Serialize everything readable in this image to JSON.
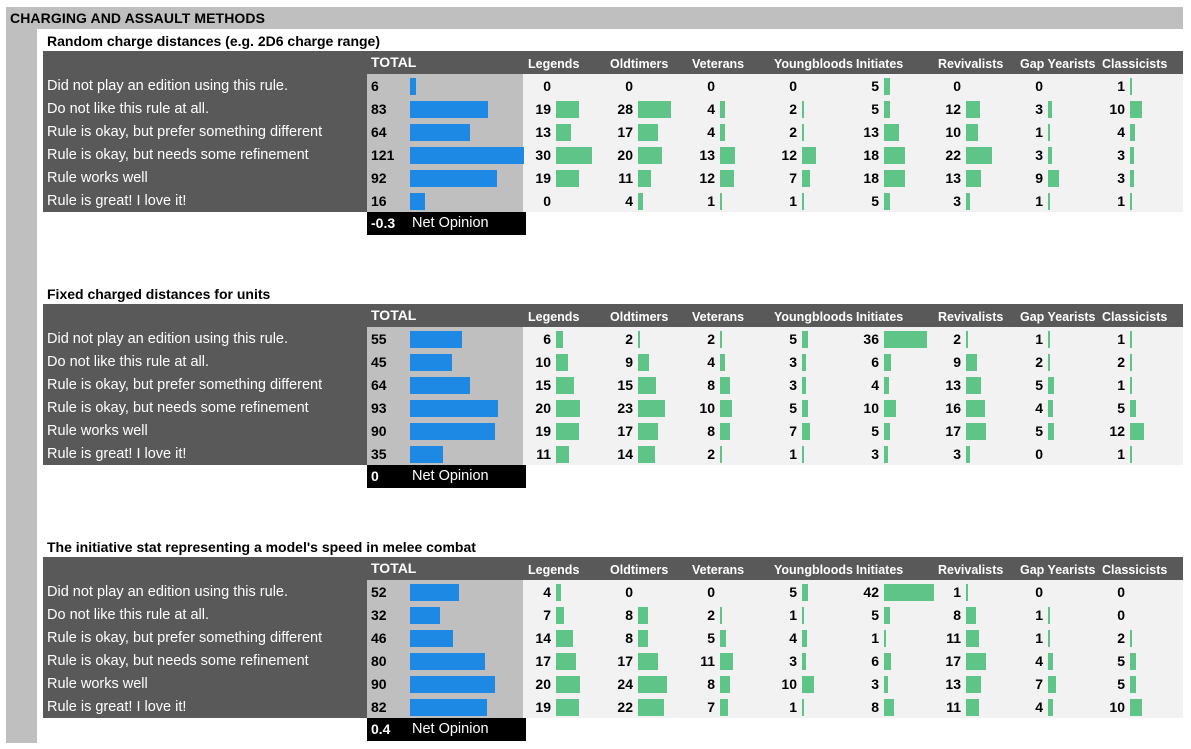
{
  "header": {
    "title": "CHARGING AND ASSAULT METHODS"
  },
  "columns": {
    "total": "TOTAL",
    "groups": [
      "Legends",
      "Oldtimers",
      "Veterans",
      "Youngbloods",
      "Initiates",
      "Revivalists",
      "Gap Yearists",
      "Classicists"
    ]
  },
  "row_labels": [
    "Did not play an edition using this rule.",
    "Do not like this rule at all.",
    "Rule is okay, but prefer something different",
    "Rule is okay, but needs some refinement",
    "Rule works well",
    "Rule is great! I love it!"
  ],
  "net_opinion_label": "Net Opinion",
  "colors": {
    "total_bar": "#1e88e5",
    "group_bar": "#5ec487",
    "dark_header": "#595959",
    "gray": "#bfbfbf"
  },
  "chart_data": [
    {
      "type": "table",
      "title": "Random charge distances (e.g. 2D6 charge range)",
      "totals": [
        6,
        83,
        64,
        121,
        92,
        16
      ],
      "groups": [
        [
          0,
          19,
          13,
          30,
          19,
          0
        ],
        [
          0,
          28,
          17,
          20,
          11,
          4
        ],
        [
          0,
          4,
          4,
          13,
          12,
          1
        ],
        [
          0,
          2,
          2,
          12,
          7,
          1
        ],
        [
          5,
          5,
          13,
          18,
          18,
          5
        ],
        [
          0,
          12,
          10,
          22,
          13,
          3
        ],
        [
          0,
          3,
          1,
          3,
          9,
          1
        ],
        [
          1,
          10,
          4,
          3,
          3,
          1
        ]
      ],
      "net_opinion": "-0.3"
    },
    {
      "type": "table",
      "title": "Fixed charged distances for units",
      "totals": [
        55,
        45,
        64,
        93,
        90,
        35
      ],
      "groups": [
        [
          6,
          10,
          15,
          20,
          19,
          11
        ],
        [
          2,
          9,
          15,
          23,
          17,
          14
        ],
        [
          2,
          4,
          8,
          10,
          8,
          2
        ],
        [
          5,
          3,
          3,
          5,
          7,
          1
        ],
        [
          36,
          6,
          4,
          10,
          5,
          3
        ],
        [
          2,
          9,
          13,
          16,
          17,
          3
        ],
        [
          1,
          2,
          5,
          4,
          5,
          0
        ],
        [
          1,
          2,
          1,
          5,
          12,
          1
        ]
      ],
      "net_opinion": "0"
    },
    {
      "type": "table",
      "title": "The initiative stat representing a model's speed in melee combat",
      "totals": [
        52,
        32,
        46,
        80,
        90,
        82
      ],
      "groups": [
        [
          4,
          7,
          14,
          17,
          20,
          19
        ],
        [
          0,
          8,
          8,
          17,
          24,
          22
        ],
        [
          0,
          2,
          5,
          11,
          8,
          7
        ],
        [
          5,
          1,
          4,
          3,
          10,
          1
        ],
        [
          42,
          5,
          1,
          6,
          3,
          8
        ],
        [
          1,
          8,
          11,
          17,
          13,
          11
        ],
        [
          0,
          1,
          1,
          4,
          7,
          4
        ],
        [
          0,
          0,
          2,
          5,
          5,
          10
        ]
      ],
      "net_opinion": "0.4"
    }
  ]
}
